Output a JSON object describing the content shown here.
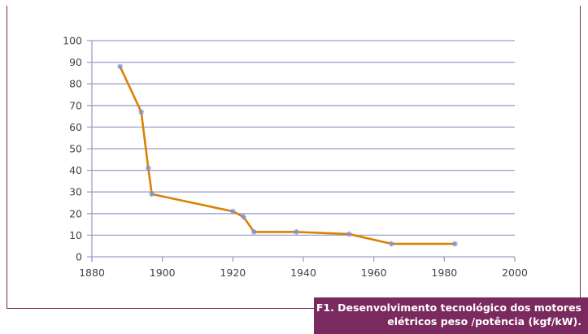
{
  "chart_data": {
    "type": "line",
    "title": "",
    "xlabel": "",
    "ylabel": "",
    "xlim": [
      1880,
      2000
    ],
    "ylim": [
      0,
      100
    ],
    "xticks": [
      1880,
      1900,
      1920,
      1940,
      1960,
      1980,
      2000
    ],
    "yticks": [
      0,
      10,
      20,
      30,
      40,
      50,
      60,
      70,
      80,
      90,
      100
    ],
    "grid": "horizontal",
    "series": [
      {
        "x": [
          1888,
          1894,
          1896,
          1897,
          1920,
          1923,
          1926,
          1938,
          1953,
          1965,
          1983
        ],
        "y": [
          88,
          67,
          41,
          29,
          21,
          18.5,
          11.5,
          11.5,
          10.5,
          6,
          6
        ],
        "color": "#d98200",
        "marker_color": "#8a8fd0"
      }
    ]
  },
  "caption": {
    "line1": "F1. Desenvolvimento tecnológico dos motores",
    "line2": "elétricos peso /potência (kgf/kW)."
  },
  "colors": {
    "frame": "#7a2a5e",
    "grid": "#9aa0d0"
  }
}
